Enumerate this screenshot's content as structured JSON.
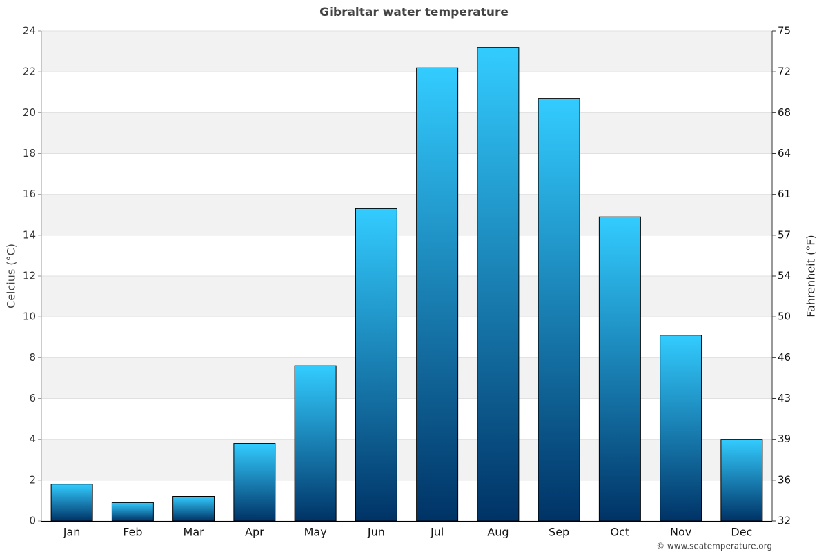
{
  "chart_data": {
    "type": "bar",
    "title": "Gibraltar water temperature",
    "y_label": "Celcius (°C)",
    "y2_label": "Fahrenheit (°F)",
    "credit": "© www.seatemperature.org",
    "categories": [
      "Jan",
      "Feb",
      "Mar",
      "Apr",
      "May",
      "Jun",
      "Jul",
      "Aug",
      "Sep",
      "Oct",
      "Nov",
      "Dec"
    ],
    "values": [
      1.8,
      0.9,
      1.2,
      3.8,
      7.6,
      15.3,
      22.2,
      23.2,
      20.7,
      14.9,
      9.1,
      4.0
    ],
    "color_top": "#33ccff",
    "color_bottom": "#003366",
    "ylim": [
      0,
      24
    ],
    "yticks": [
      0,
      2,
      4,
      6,
      8,
      10,
      12,
      14,
      16,
      18,
      20,
      22,
      24
    ],
    "y2lim": [
      32,
      75.2
    ],
    "y2ticks": [
      32,
      {
        "value": 35.6,
        "label": "36"
      },
      {
        "value": 39.2,
        "label": "39"
      },
      {
        "value": 42.8,
        "label": "43"
      },
      {
        "value": 46.4,
        "label": "46"
      },
      50,
      {
        "value": 53.6,
        "label": "54"
      },
      {
        "value": 57.2,
        "label": "57"
      },
      {
        "value": 60.8,
        "label": "61"
      },
      {
        "value": 64.4,
        "label": "64"
      },
      68,
      {
        "value": 71.6,
        "label": "72"
      },
      {
        "value": 75.2,
        "label": "75"
      }
    ],
    "grid": true
  }
}
